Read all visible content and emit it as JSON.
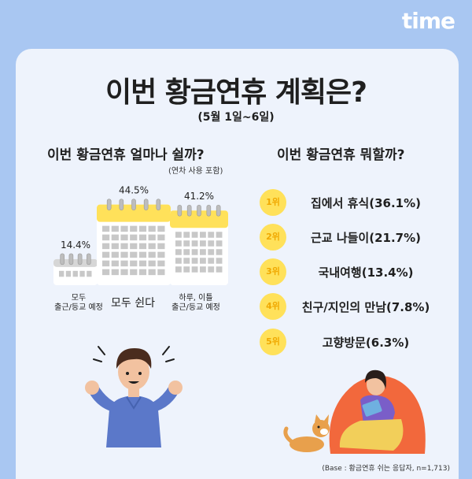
{
  "brand": {
    "logo_text": "time"
  },
  "header": {
    "title": "이번 황금연휴 계획은?",
    "subtitle": "(5월 1일~6일)"
  },
  "left_section": {
    "title": "이번 황금연휴 얼마나 쉴까?",
    "note": "(연차 사용 포함)"
  },
  "right_section": {
    "title": "이번 황금연휴 뭐할까?"
  },
  "chart_data": [
    {
      "type": "bar",
      "categories": [
        "모두\n출근/등교 예정",
        "모두 쉰다",
        "하루, 이틀\n출근/등교 예정"
      ],
      "values": [
        14.4,
        44.5,
        41.2
      ],
      "value_labels": [
        "14.4%",
        "44.5%",
        "41.2%"
      ],
      "unit": "%"
    },
    {
      "type": "table",
      "items": [
        {
          "rank": "1위",
          "label": "집에서 휴식(36.1%)",
          "value": 36.1
        },
        {
          "rank": "2위",
          "label": "근교 나들이(21.7%)",
          "value": 21.7
        },
        {
          "rank": "3위",
          "label": "국내여행(13.4%)",
          "value": 13.4
        },
        {
          "rank": "4위",
          "label": "친구/지인의 만남(7.8%)",
          "value": 7.8
        },
        {
          "rank": "5위",
          "label": "고향방문(6.3%)",
          "value": 6.3
        }
      ]
    }
  ],
  "footer": {
    "base_note": "(Base : 황금연휴 쉬는 응답자, n=1,713)"
  },
  "colors": {
    "background": "#a9c7f2",
    "card": "#eef3fc",
    "calendar_header": "#ffe15a",
    "gray_header": "#d6d6d6",
    "badge": "#ffe15a"
  },
  "icons": [
    "calendar-icon",
    "man-illustration",
    "woman-reading-illustration",
    "dog-illustration"
  ]
}
